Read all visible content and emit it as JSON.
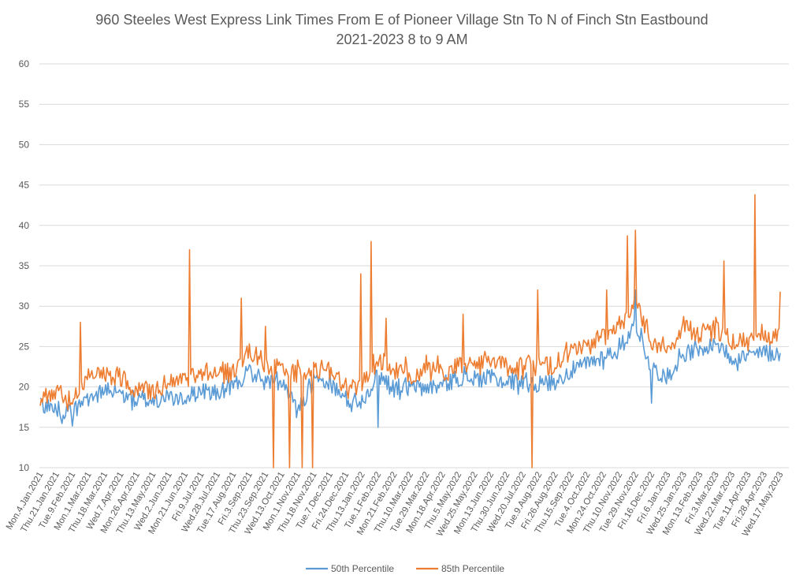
{
  "chart_data": {
    "type": "line",
    "title": [
      "960 Steeles West Express Link Times From E of Pioneer Village Stn To N of Finch Stn Eastbound",
      "2021-2023 8 to 9 AM"
    ],
    "xlabel": "",
    "ylabel": "",
    "ylim": [
      10,
      60
    ],
    "yticks": [
      "10",
      "15",
      "20",
      "25",
      "30",
      "35",
      "40",
      "45",
      "50",
      "55",
      "60"
    ],
    "grid": true,
    "legend_position": "bottom",
    "categories": [
      "Mon.4.Jan.2021",
      "Thu.21.Jan.2021",
      "Tue.9.Feb.2021",
      "Mon.1.Mar.2021",
      "Thu.18.Mar.2021",
      "Wed.7.Apr.2021",
      "Mon.26.Apr.2021",
      "Thu.13.May.2021",
      "Wed.2.Jun.2021",
      "Mon.21.Jun.2021",
      "Fri.9.Jul.2021",
      "Wed.28.Jul.2021",
      "Tue.17.Aug.2021",
      "Fri.3.Sep.2021",
      "Thu.23.Sep.2021",
      "Wed.13.Oct.2021",
      "Mon.1.Nov.2021",
      "Thu.18.Nov.2021",
      "Tue.7.Dec.2021",
      "Fri.24.Dec.2021",
      "Thu.13.Jan.2022",
      "Tue.1.Feb.2022",
      "Mon.21.Feb.2022",
      "Thu.10.Mar.2022",
      "Tue.29.Mar.2022",
      "Mon.18.Apr.2022",
      "Thu.5.May.2022",
      "Wed.25.May.2022",
      "Mon.13.Jun.2022",
      "Thu.30.Jun.2022",
      "Wed.20.Jul.2022",
      "Tue.9.Aug.2022",
      "Fri.26.Aug.2022",
      "Thu.15.Sep.2022",
      "Tue.4.Oct.2022",
      "Mon.24.Oct.2022",
      "Thu.10.Nov.2022",
      "Tue.29.Nov.2022",
      "Fri.16.Dec.2022",
      "Fri.6.Jan.2023",
      "Wed.25.Jan.2023",
      "Mon.13.Feb.2023",
      "Fri.3.Mar.2023",
      "Wed.22.Mar.2023",
      "Tue.11.Apr.2023",
      "Fri.28.Apr.2023",
      "Wed.17.May.2023"
    ],
    "series": [
      {
        "name": "50th Percentile",
        "color": "#5b9bd5",
        "values": [
          18,
          17.2,
          16.9,
          18.8,
          19.5,
          19.2,
          18.3,
          18.4,
          18.6,
          18.6,
          19.6,
          19.2,
          19.9,
          22,
          20.6,
          20.5,
          17,
          20.4,
          20.6,
          18.2,
          18.4,
          21.5,
          20,
          19.8,
          19.9,
          20.2,
          21.2,
          21,
          21.1,
          20.6,
          20.8,
          20.3,
          20.7,
          22,
          22.8,
          23.8,
          24.6,
          28,
          22.3,
          21.3,
          24.2,
          24.3,
          25.5,
          23.6,
          23.8,
          24.2,
          24.2
        ],
        "spikes": [
          {
            "at": 21,
            "value": 15
          },
          {
            "at": 37,
            "value": 32
          },
          {
            "at": 38,
            "value": 18
          }
        ]
      },
      {
        "name": "85th Percentile",
        "color": "#ed7d31",
        "values": [
          19.2,
          19.2,
          18.6,
          21.6,
          21.6,
          21.2,
          19.5,
          19.6,
          20.3,
          20.9,
          22,
          21.3,
          22,
          24.5,
          22.8,
          22,
          21.5,
          22,
          22.6,
          19.6,
          20.5,
          23.3,
          22,
          21.5,
          22,
          21.8,
          22.5,
          23.3,
          23.2,
          22.5,
          22.6,
          22.4,
          22.8,
          24.5,
          25,
          26.2,
          27.4,
          30.8,
          25.6,
          24.6,
          27.6,
          26.5,
          27.2,
          25.4,
          26,
          26.8,
          26.4
        ],
        "spikes": [
          {
            "at": 2.5,
            "value": 28
          },
          {
            "at": 9.3,
            "value": 37
          },
          {
            "at": 12.5,
            "value": 31
          },
          {
            "at": 14,
            "value": 27.5
          },
          {
            "at": 14.5,
            "value": 10
          },
          {
            "at": 15.5,
            "value": 10
          },
          {
            "at": 16.3,
            "value": 10
          },
          {
            "at": 16.9,
            "value": 10
          },
          {
            "at": 19.9,
            "value": 34
          },
          {
            "at": 20.6,
            "value": 38
          },
          {
            "at": 21.5,
            "value": 28.5
          },
          {
            "at": 26.3,
            "value": 29
          },
          {
            "at": 30.6,
            "value": 10
          },
          {
            "at": 30.9,
            "value": 32
          },
          {
            "at": 35.2,
            "value": 32
          },
          {
            "at": 36.5,
            "value": 38.7
          },
          {
            "at": 37,
            "value": 39.4
          },
          {
            "at": 42.5,
            "value": 35.6
          },
          {
            "at": 44.4,
            "value": 43.8
          },
          {
            "at": 46.2,
            "value": 31.8
          }
        ]
      }
    ]
  }
}
